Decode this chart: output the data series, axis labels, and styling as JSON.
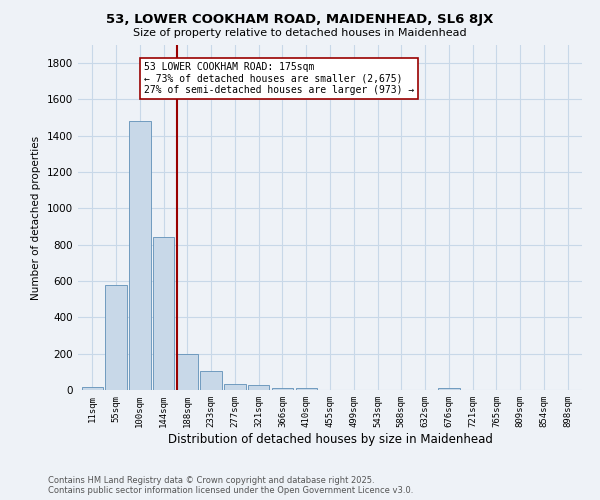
{
  "title_line1": "53, LOWER COOKHAM ROAD, MAIDENHEAD, SL6 8JX",
  "title_line2": "Size of property relative to detached houses in Maidenhead",
  "xlabel": "Distribution of detached houses by size in Maidenhead",
  "ylabel": "Number of detached properties",
  "categories": [
    "11sqm",
    "55sqm",
    "100sqm",
    "144sqm",
    "188sqm",
    "233sqm",
    "277sqm",
    "321sqm",
    "366sqm",
    "410sqm",
    "455sqm",
    "499sqm",
    "543sqm",
    "588sqm",
    "632sqm",
    "676sqm",
    "721sqm",
    "765sqm",
    "809sqm",
    "854sqm",
    "898sqm"
  ],
  "values": [
    15,
    580,
    1480,
    840,
    200,
    105,
    35,
    25,
    10,
    10,
    0,
    0,
    0,
    0,
    0,
    10,
    0,
    0,
    0,
    0,
    0
  ],
  "bar_color": "#c8d8e8",
  "bar_edge_color": "#6090b8",
  "vline_color": "#990000",
  "annotation_text": "53 LOWER COOKHAM ROAD: 175sqm\n← 73% of detached houses are smaller (2,675)\n27% of semi-detached houses are larger (973) →",
  "annotation_box_color": "white",
  "annotation_box_edge_color": "#990000",
  "ylim": [
    0,
    1900
  ],
  "yticks": [
    0,
    200,
    400,
    600,
    800,
    1000,
    1200,
    1400,
    1600,
    1800
  ],
  "grid_color": "#c8d8e8",
  "background_color": "#eef2f7",
  "footer_line1": "Contains HM Land Registry data © Crown copyright and database right 2025.",
  "footer_line2": "Contains public sector information licensed under the Open Government Licence v3.0."
}
